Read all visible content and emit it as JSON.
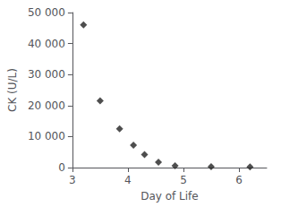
{
  "chart_data": {
    "type": "scatter",
    "x": [
      3.2,
      3.5,
      3.85,
      4.1,
      4.3,
      4.55,
      4.85,
      5.5,
      6.2
    ],
    "values": [
      46000,
      21500,
      12500,
      7200,
      4200,
      1700,
      600,
      300,
      200
    ],
    "xlabel": "Day of Life",
    "ylabel": "CK (U/L)",
    "xlim": [
      3,
      6.5
    ],
    "ylim": [
      0,
      50000
    ],
    "xticks": [
      3,
      4,
      5,
      6
    ],
    "yticks": [
      0,
      {
        "value": 10000,
        "label": "10 000"
      },
      {
        "value": 20000,
        "label": "20 000"
      },
      {
        "value": 30000,
        "label": "30 000"
      },
      {
        "value": 40000,
        "label": "40 000"
      },
      {
        "value": 50000,
        "label": "50 000"
      }
    ],
    "color": "#222222",
    "marker": "diamond",
    "grid": false
  }
}
